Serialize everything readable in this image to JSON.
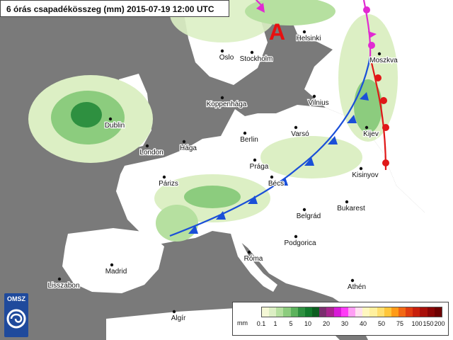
{
  "title": "6 órás csapadékösszeg (mm) 2015-07-19 12:00 UTC",
  "pressure_label": "A",
  "logo": "OMSZ",
  "cities": [
    "Helsinki",
    "Oslo",
    "Stockholm",
    "Moszkva",
    "Koppenhága",
    "Vilnius",
    "Dublin",
    "Varsó",
    "Kijev",
    "London",
    "Hága",
    "Berlin",
    "Prága",
    "Kisinyov",
    "Párizs",
    "Bécs",
    "Bukarest",
    "Belgrád",
    "Podgorica",
    "Róma",
    "Madrid",
    "Lisszabon",
    "Athén",
    "Algír"
  ],
  "legend": {
    "unit": "mm",
    "ticks": [
      "0.1",
      "1",
      "5",
      "10",
      "20",
      "30",
      "40",
      "50",
      "75",
      "100",
      "150",
      "200"
    ],
    "colors": [
      "#f5f8d6",
      "#dcefc4",
      "#b6e0a0",
      "#8ccc7e",
      "#5cb25c",
      "#2e9040",
      "#127a2c",
      "#0c5e20",
      "#7a2e6e",
      "#a8248e",
      "#d81ad8",
      "#ff3cf6",
      "#ff9ef4",
      "#ffe0f0",
      "#fff7bf",
      "#fff09e",
      "#ffdf70",
      "#ffc63a",
      "#ff9b18",
      "#f26814",
      "#e03d10",
      "#c8200c",
      "#a8100a",
      "#8a0606",
      "#6e0202"
    ]
  },
  "colors": {
    "land": "#ffffff",
    "sea": "#7a7a7a",
    "cold_front": "#1a4fd8",
    "warm_front": "#e01818",
    "occluded_front": "#e12ad2",
    "high": "#e81010"
  }
}
